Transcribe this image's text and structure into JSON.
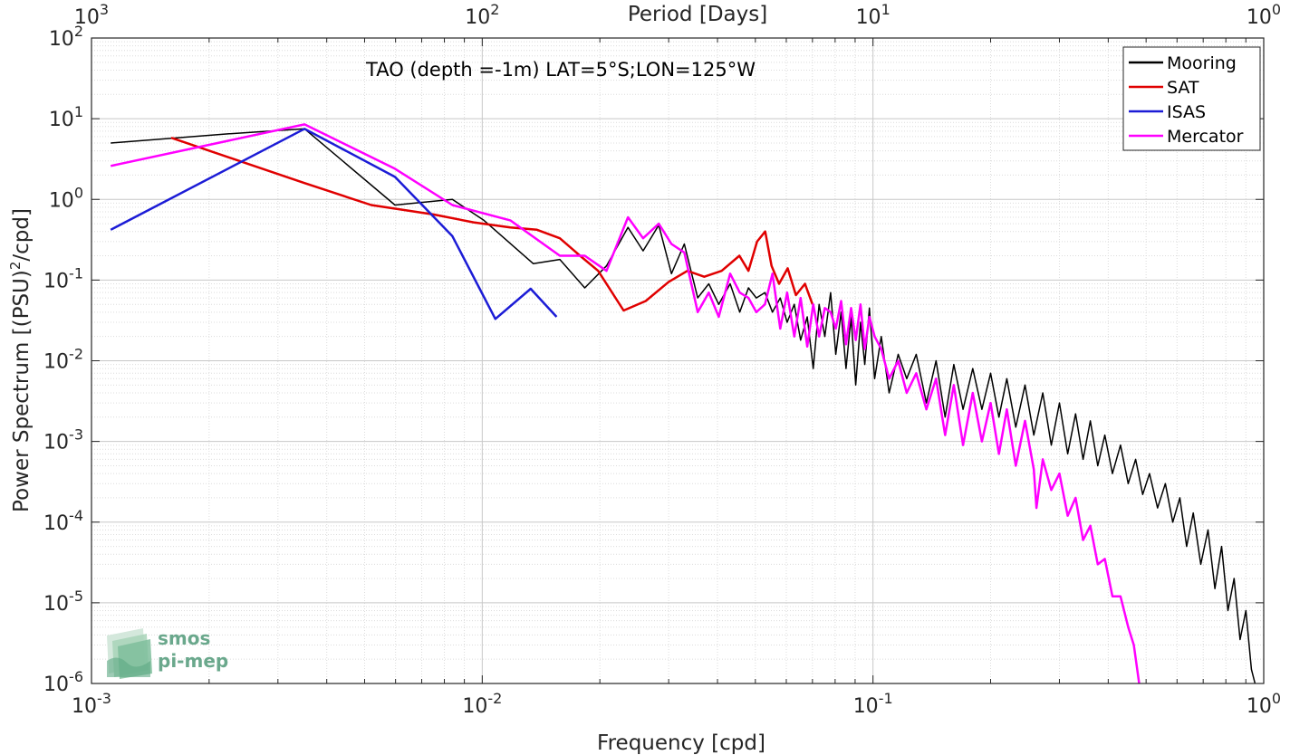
{
  "chart_data": {
    "type": "line",
    "title": "TAO (depth =-1m) LAT=5°S;LON=125°W",
    "xlabel": "Frequency [cpd]",
    "ylabel": "Power Spectrum [(PSU)2/cpd]",
    "ylabel_parts": {
      "main": "Power Spectrum [(PSU)",
      "sup": "2",
      "tail": "/cpd]"
    },
    "top_xlabel": "Period [Days]",
    "x_scale": "log",
    "y_scale": "log",
    "xlim": [
      0.001,
      1
    ],
    "ylim": [
      1e-06,
      100
    ],
    "grid": true,
    "legend_position": "top-right",
    "x_ticks": [
      {
        "v": 0.001,
        "base": "10",
        "exp": "-3"
      },
      {
        "v": 0.01,
        "base": "10",
        "exp": "-2"
      },
      {
        "v": 0.1,
        "base": "10",
        "exp": "-1"
      },
      {
        "v": 1,
        "base": "10",
        "exp": "0"
      }
    ],
    "y_ticks": [
      {
        "v": 100,
        "base": "10",
        "exp": "2"
      },
      {
        "v": 10,
        "base": "10",
        "exp": "1"
      },
      {
        "v": 1,
        "base": "10",
        "exp": "0"
      },
      {
        "v": 0.1,
        "base": "10",
        "exp": "-1"
      },
      {
        "v": 0.01,
        "base": "10",
        "exp": "-2"
      },
      {
        "v": 0.001,
        "base": "10",
        "exp": "-3"
      },
      {
        "v": 0.0001,
        "base": "10",
        "exp": "-4"
      },
      {
        "v": 1e-05,
        "base": "10",
        "exp": "-5"
      },
      {
        "v": 1e-06,
        "base": "10",
        "exp": "-6"
      }
    ],
    "top_ticks": [
      {
        "v": 0.001,
        "base": "10",
        "exp": "3"
      },
      {
        "v": 0.01,
        "base": "10",
        "exp": "2"
      },
      {
        "v": 0.1,
        "base": "10",
        "exp": "1"
      },
      {
        "v": 1,
        "base": "10",
        "exp": "0"
      }
    ],
    "series": [
      {
        "name": "Mooring",
        "color": "#000000",
        "width": 1.5,
        "x": [
          0.00112,
          0.00225,
          0.00351,
          0.00598,
          0.00839,
          0.0101,
          0.0135,
          0.0158,
          0.0183,
          0.0208,
          0.0236,
          0.0258,
          0.0283,
          0.0305,
          0.0329,
          0.0356,
          0.038,
          0.0403,
          0.0431,
          0.0456,
          0.048,
          0.0503,
          0.0529,
          0.0553,
          0.0579,
          0.0603,
          0.0629,
          0.0653,
          0.0679,
          0.0703,
          0.0728,
          0.0753,
          0.0779,
          0.0803,
          0.0829,
          0.0853,
          0.0879,
          0.0903,
          0.0929,
          0.0953,
          0.0979,
          0.101,
          0.105,
          0.11,
          0.116,
          0.122,
          0.129,
          0.137,
          0.145,
          0.153,
          0.161,
          0.17,
          0.18,
          0.19,
          0.2,
          0.21,
          0.22,
          0.232,
          0.245,
          0.258,
          0.272,
          0.286,
          0.3,
          0.315,
          0.33,
          0.345,
          0.36,
          0.376,
          0.392,
          0.41,
          0.43,
          0.45,
          0.47,
          0.49,
          0.51,
          0.535,
          0.56,
          0.585,
          0.61,
          0.635,
          0.66,
          0.69,
          0.72,
          0.75,
          0.78,
          0.81,
          0.84,
          0.87,
          0.9,
          0.93,
          0.95
        ],
        "y": [
          5.0,
          6.5,
          7.5,
          0.85,
          1.0,
          0.55,
          0.16,
          0.18,
          0.08,
          0.15,
          0.45,
          0.23,
          0.48,
          0.12,
          0.28,
          0.06,
          0.09,
          0.05,
          0.09,
          0.04,
          0.08,
          0.06,
          0.07,
          0.04,
          0.06,
          0.03,
          0.05,
          0.018,
          0.035,
          0.008,
          0.05,
          0.02,
          0.07,
          0.012,
          0.04,
          0.008,
          0.035,
          0.005,
          0.03,
          0.009,
          0.045,
          0.006,
          0.02,
          0.004,
          0.012,
          0.006,
          0.012,
          0.003,
          0.01,
          0.002,
          0.009,
          0.0025,
          0.008,
          0.0025,
          0.007,
          0.002,
          0.006,
          0.0015,
          0.005,
          0.0012,
          0.004,
          0.0009,
          0.003,
          0.0007,
          0.0022,
          0.0006,
          0.0018,
          0.0005,
          0.0012,
          0.0004,
          0.0009,
          0.0003,
          0.0006,
          0.00022,
          0.0004,
          0.00015,
          0.0003,
          0.0001,
          0.0002,
          5e-05,
          0.00013,
          3e-05,
          8e-05,
          1.5e-05,
          5e-05,
          8e-06,
          2e-05,
          3.5e-06,
          8e-06,
          1.5e-06,
          1e-06
        ]
      },
      {
        "name": "SAT",
        "color": "#e00000",
        "width": 2.5,
        "x": [
          0.0016,
          0.0035,
          0.0052,
          0.0075,
          0.0095,
          0.0118,
          0.0138,
          0.0158,
          0.0178,
          0.0198,
          0.023,
          0.0262,
          0.03,
          0.0335,
          0.037,
          0.041,
          0.0455,
          0.048,
          0.0505,
          0.053,
          0.055,
          0.0575,
          0.0605,
          0.0635,
          0.067,
          0.07
        ],
        "y": [
          5.8,
          1.6,
          0.85,
          0.65,
          0.52,
          0.45,
          0.42,
          0.33,
          0.2,
          0.13,
          0.042,
          0.055,
          0.095,
          0.13,
          0.11,
          0.13,
          0.2,
          0.13,
          0.3,
          0.4,
          0.15,
          0.09,
          0.14,
          0.065,
          0.09,
          0.05
        ]
      },
      {
        "name": "ISAS",
        "color": "#1c1cd6",
        "width": 2.5,
        "x": [
          0.00112,
          0.00351,
          0.00598,
          0.00839,
          0.0108,
          0.0133,
          0.0155
        ],
        "y": [
          0.42,
          7.5,
          1.9,
          0.35,
          0.033,
          0.078,
          0.035
        ]
      },
      {
        "name": "Mercator",
        "color": "#ff00ff",
        "width": 2.5,
        "x": [
          0.00112,
          0.00351,
          0.00598,
          0.00839,
          0.0118,
          0.0158,
          0.0183,
          0.0208,
          0.0236,
          0.0258,
          0.0283,
          0.0305,
          0.0329,
          0.0356,
          0.038,
          0.0403,
          0.0431,
          0.0456,
          0.048,
          0.0503,
          0.0529,
          0.0553,
          0.0579,
          0.0603,
          0.0629,
          0.0653,
          0.0679,
          0.0703,
          0.0728,
          0.0753,
          0.0779,
          0.0803,
          0.0829,
          0.0853,
          0.0879,
          0.0903,
          0.0929,
          0.0953,
          0.0979,
          0.101,
          0.105,
          0.11,
          0.116,
          0.122,
          0.129,
          0.137,
          0.145,
          0.153,
          0.161,
          0.17,
          0.18,
          0.19,
          0.2,
          0.21,
          0.22,
          0.232,
          0.245,
          0.258,
          0.262,
          0.272,
          0.286,
          0.3,
          0.315,
          0.33,
          0.345,
          0.36,
          0.376,
          0.392,
          0.41,
          0.43,
          0.45,
          0.465,
          0.48
        ],
        "y": [
          2.6,
          8.5,
          2.4,
          0.85,
          0.55,
          0.2,
          0.2,
          0.13,
          0.6,
          0.33,
          0.5,
          0.28,
          0.22,
          0.04,
          0.07,
          0.035,
          0.12,
          0.07,
          0.06,
          0.04,
          0.05,
          0.12,
          0.025,
          0.07,
          0.02,
          0.06,
          0.015,
          0.05,
          0.02,
          0.045,
          0.04,
          0.025,
          0.055,
          0.016,
          0.045,
          0.018,
          0.05,
          0.014,
          0.035,
          0.02,
          0.014,
          0.006,
          0.01,
          0.004,
          0.007,
          0.0025,
          0.006,
          0.0012,
          0.005,
          0.0009,
          0.004,
          0.001,
          0.003,
          0.0007,
          0.0025,
          0.0005,
          0.0018,
          0.00045,
          0.00015,
          0.0006,
          0.00025,
          0.0004,
          0.00012,
          0.0002,
          6e-05,
          9e-05,
          3e-05,
          3.5e-05,
          1.2e-05,
          1.2e-05,
          5e-06,
          3e-06,
          1e-06
        ]
      }
    ]
  },
  "logo": {
    "line1": "smos",
    "line2": "pi-mep"
  }
}
